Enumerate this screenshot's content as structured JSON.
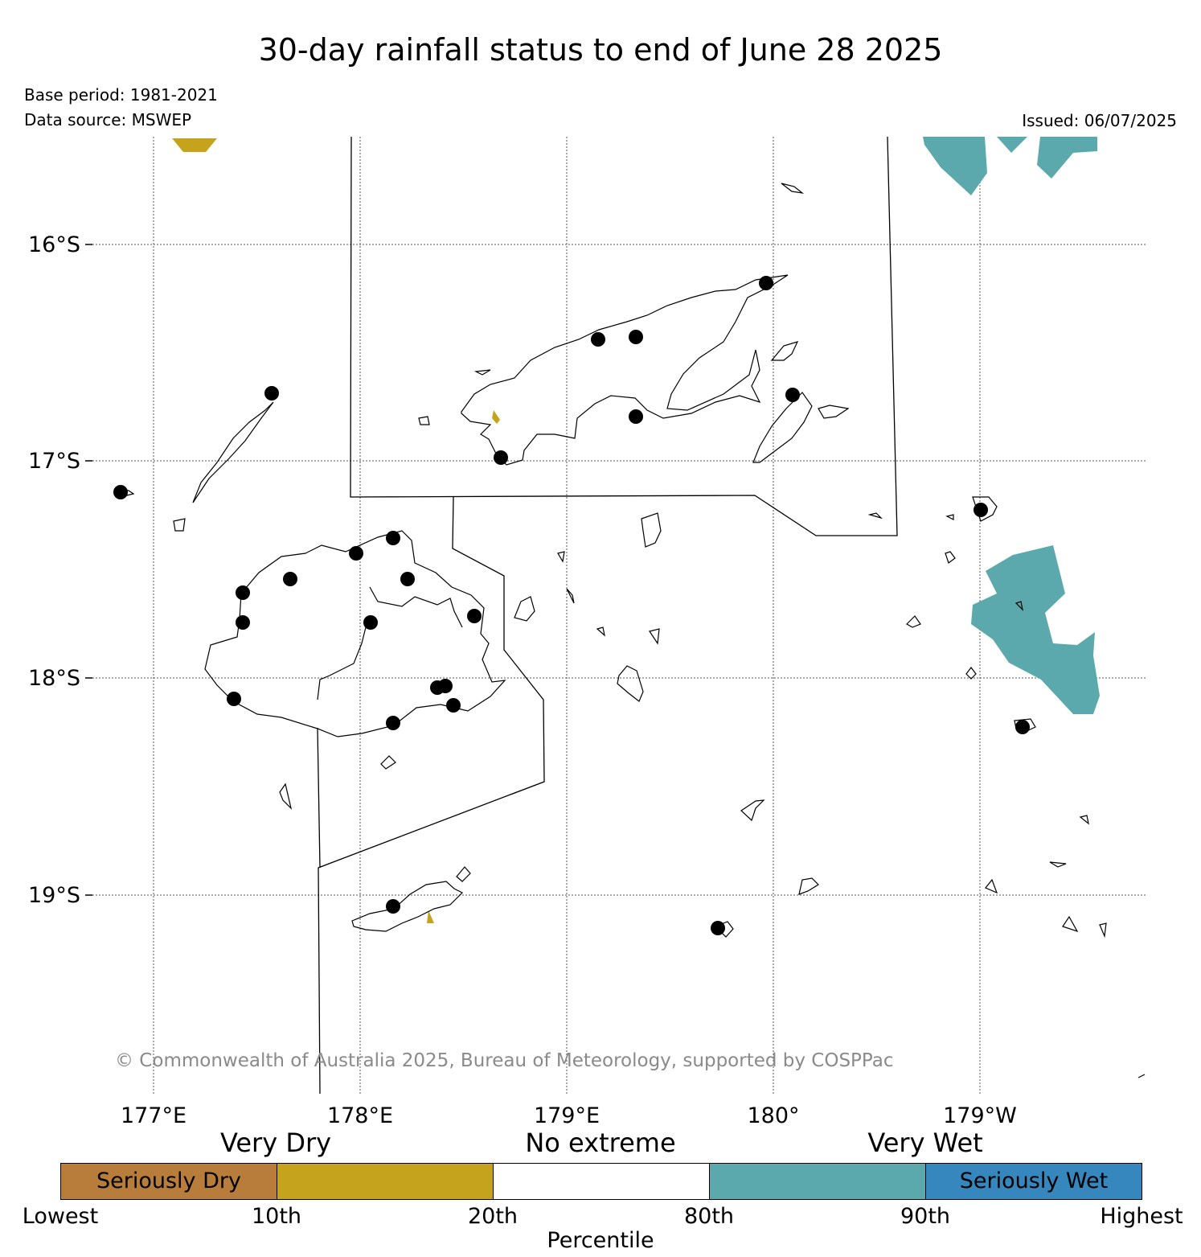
{
  "title": "30-day rainfall status to end of June 28 2025",
  "base_period": "Base period: 1981-2021",
  "data_source": "Data source: MSWEP",
  "issued": "Issued: 06/07/2025",
  "copyright": "© Commonwealth of Australia 2025, Bureau of Meteorology, supported by COSPPac",
  "lat_labels": [
    "16°S",
    "17°S",
    "18°S",
    "19°S"
  ],
  "lon_labels": [
    "177°E",
    "178°E",
    "179°E",
    "180°",
    "179°W"
  ],
  "legend": {
    "categories": [
      "Very Dry",
      "No extreme",
      "Very Wet"
    ],
    "bins": [
      {
        "label": "Seriously Dry",
        "color": "#b87d3a"
      },
      {
        "label": "",
        "color": "#c5a31c"
      },
      {
        "label": "",
        "color": "#ffffff"
      },
      {
        "label": "",
        "color": "#5ba9ac"
      },
      {
        "label": "Seriously Wet",
        "color": "#3687bd"
      }
    ],
    "ticks": [
      "Lowest",
      "10th",
      "20th",
      "80th",
      "90th",
      "Highest"
    ],
    "axis_title": "Percentile"
  },
  "colors": {
    "very_dry": "#c5a31c",
    "very_wet": "#5ba9ac",
    "station": "#000000",
    "coastline": "#000000",
    "grid": "#555555"
  }
}
